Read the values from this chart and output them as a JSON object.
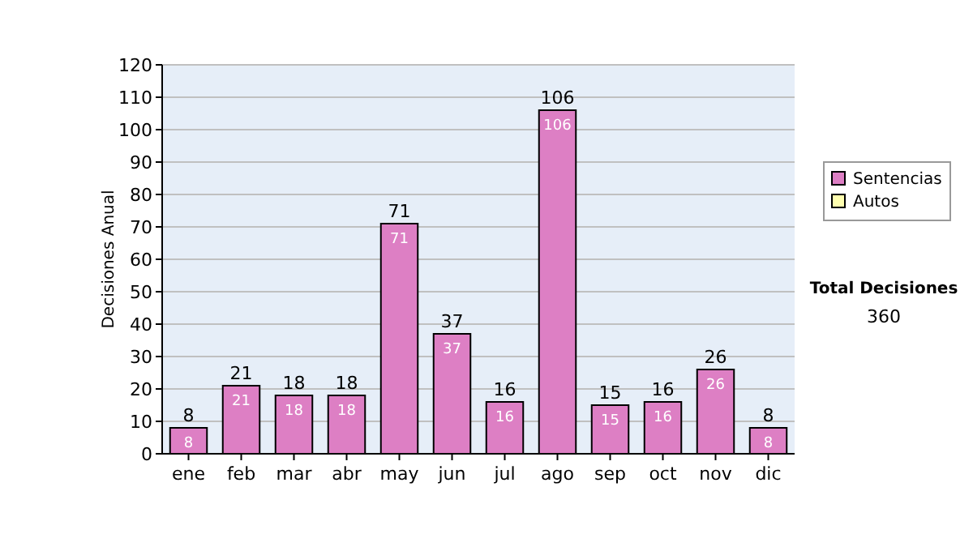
{
  "chart_data": {
    "type": "bar",
    "stacked": true,
    "ylabel": "Decisiones Anual",
    "categories": [
      "ene",
      "feb",
      "mar",
      "abr",
      "may",
      "jun",
      "jul",
      "ago",
      "sep",
      "oct",
      "nov",
      "dic"
    ],
    "series": [
      {
        "name": "Sentencias",
        "color": "#dd7fc4",
        "values": [
          8,
          21,
          18,
          18,
          71,
          37,
          16,
          106,
          15,
          16,
          26,
          8
        ],
        "value_labels": [
          "8",
          "21",
          "18",
          "18",
          "71",
          "37",
          "16",
          "106",
          "15",
          "16",
          "26",
          "8"
        ]
      },
      {
        "name": "Autos",
        "color": "#ffffb0",
        "values": [
          0,
          0,
          0,
          0,
          0,
          0,
          0,
          0,
          0,
          0,
          0,
          0
        ]
      }
    ],
    "totals": [
      "8",
      "21",
      "18",
      "18",
      "71",
      "37",
      "16",
      "106",
      "15",
      "16",
      "26",
      "8"
    ],
    "ylim": [
      0,
      120
    ],
    "yticks": [
      0,
      10,
      20,
      30,
      40,
      50,
      60,
      70,
      80,
      90,
      100,
      110,
      120
    ],
    "grid": "y",
    "legend": "right",
    "annotations": [
      "Total Decisiones",
      "360"
    ]
  }
}
